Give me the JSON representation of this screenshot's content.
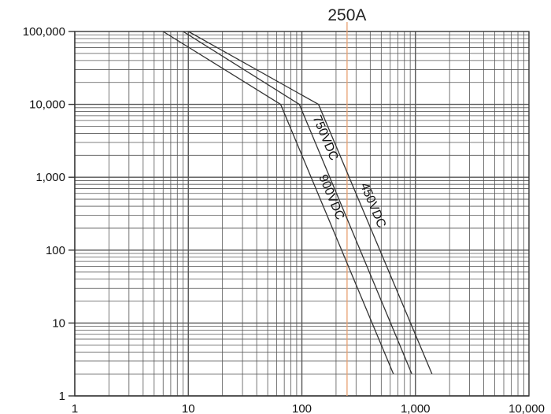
{
  "chart_data": {
    "type": "line",
    "title": "",
    "xlabel": "",
    "ylabel": "",
    "x_scale": "log",
    "y_scale": "log",
    "xlim": [
      1,
      10000
    ],
    "ylim": [
      1,
      100000
    ],
    "x_ticks": [
      "1",
      "10",
      "100",
      "1,000",
      "10,000"
    ],
    "y_ticks": [
      "1",
      "10",
      "100",
      "1,000",
      "10,000",
      "100,000"
    ],
    "grid": true,
    "marker": {
      "label": "250A",
      "x": 250,
      "color": "#e8a070"
    },
    "series": [
      {
        "name": "900VDC",
        "points": [
          [
            6,
            100000
          ],
          [
            65,
            10000
          ],
          [
            640,
            2
          ]
        ]
      },
      {
        "name": "750VDC",
        "points": [
          [
            9,
            100000
          ],
          [
            95,
            10000
          ],
          [
            930,
            2
          ]
        ]
      },
      {
        "name": "450VDC",
        "points": [
          [
            10,
            100000
          ],
          [
            140,
            10000
          ],
          [
            1400,
            2
          ]
        ]
      }
    ],
    "colors": {
      "line": "#333333",
      "grid": "#555555",
      "marker": "#e8a070"
    }
  }
}
